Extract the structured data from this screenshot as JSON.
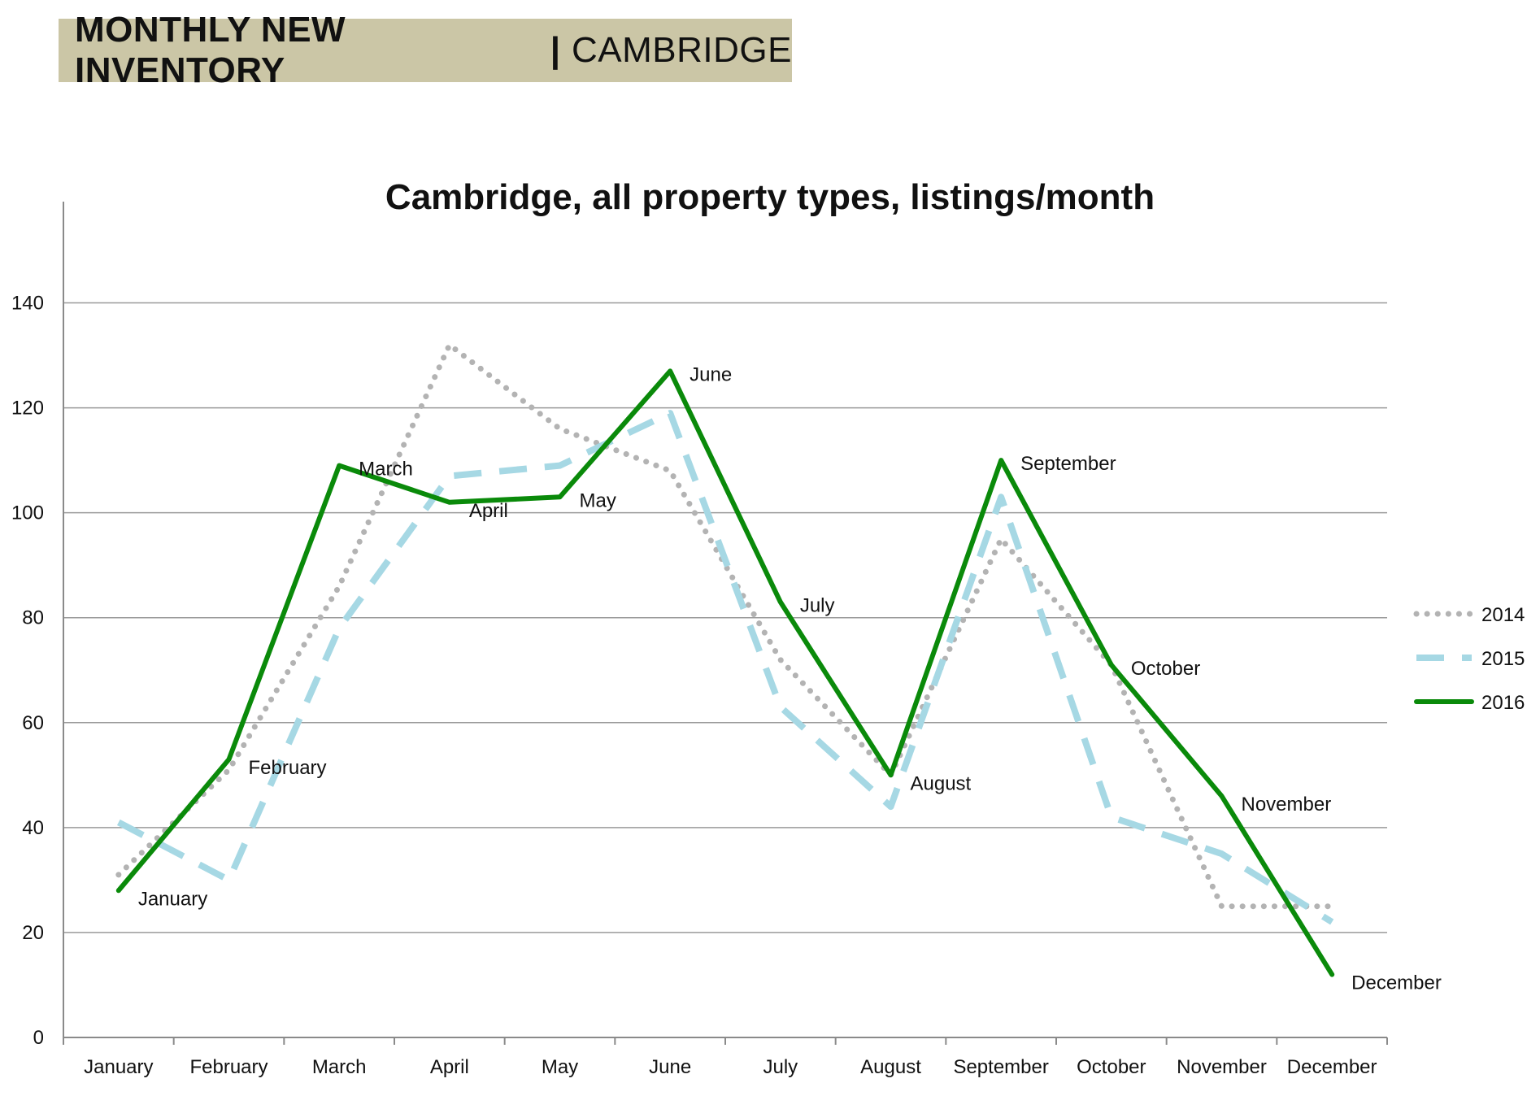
{
  "header": {
    "title_bold": "MONTHLY NEW INVENTORY",
    "separator": "|",
    "title_city": "CAMBRIDGE"
  },
  "chart_data": {
    "type": "line",
    "title": "Cambridge, all property types, listings/month",
    "xlabel": "",
    "ylabel": "",
    "ylim": [
      0,
      150
    ],
    "yticks": [
      0,
      20,
      40,
      60,
      80,
      100,
      120,
      140
    ],
    "grid": true,
    "legend_position": "right",
    "categories": [
      "January",
      "February",
      "March",
      "April",
      "May",
      "June",
      "July",
      "August",
      "September",
      "October",
      "November",
      "December"
    ],
    "series": [
      {
        "name": "2014",
        "style": "dotted",
        "color": "#b3b3b3",
        "values": [
          31,
          51,
          86,
          132,
          116,
          108,
          72,
          50,
          95,
          71,
          25,
          25
        ]
      },
      {
        "name": "2015",
        "style": "dashed",
        "color": "#a6d8e4",
        "values": [
          41,
          30,
          78,
          107,
          109,
          119,
          63,
          44,
          103,
          42,
          35,
          22
        ]
      },
      {
        "name": "2016",
        "style": "solid",
        "color": "#0a8a0a",
        "values": [
          28,
          53,
          109,
          102,
          103,
          127,
          83,
          50,
          110,
          71,
          46,
          12
        ]
      }
    ],
    "data_labels_series": "2016"
  }
}
